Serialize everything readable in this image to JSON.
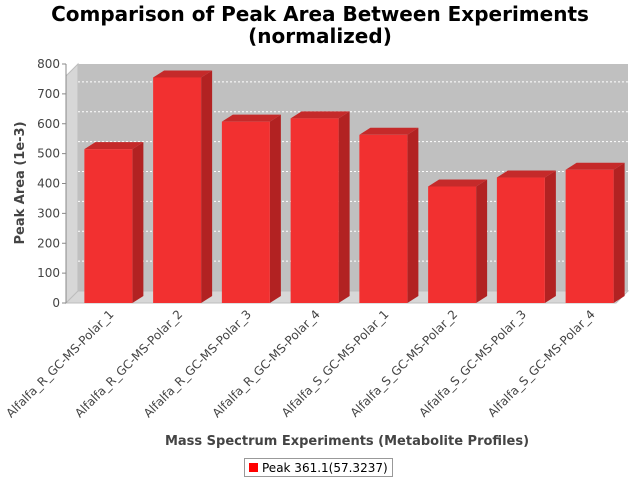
{
  "chart_data": {
    "type": "bar",
    "title_line1": "Comparison of Peak Area Between Experiments",
    "title_line2": "(normalized)",
    "xlabel": "Mass Spectrum Experiments (Metabolite Profiles)",
    "ylabel": "Peak Area (1e-3)",
    "ylim": [
      0,
      800
    ],
    "yticks": [
      "0",
      "100",
      "200",
      "300",
      "400",
      "500",
      "600",
      "700",
      "800"
    ],
    "categories": [
      "Alfalfa_R_GC-MS-Polar_1",
      "Alfalfa_R_GC-MS-Polar_2",
      "Alfalfa_R_GC-MS-Polar_3",
      "Alfalfa_R_GC-MS-Polar_4",
      "Alfalfa_S_GC-MS-Polar_1",
      "Alfalfa_S_GC-MS-Polar_2",
      "Alfalfa_S_GC-MS-Polar_3",
      "Alfalfa_S_GC-MS-Polar_4"
    ],
    "series": [
      {
        "name": "Peak 361.1(57.3237)",
        "color": "#ff0000",
        "values": [
          515,
          755,
          607,
          618,
          563,
          390,
          420,
          446
        ]
      }
    ],
    "grid": true,
    "legend_position": "bottom"
  }
}
